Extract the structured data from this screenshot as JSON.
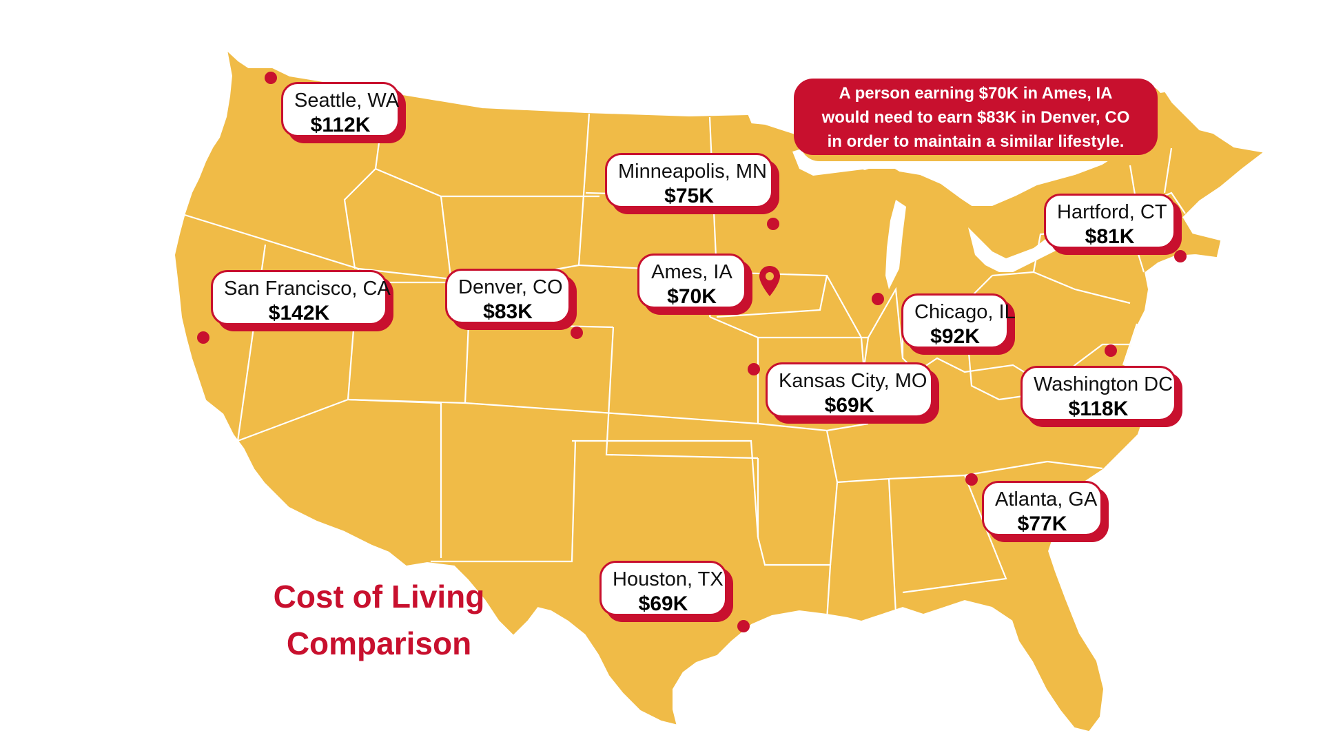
{
  "title": {
    "line1": "Cost of Living",
    "line2": "Comparison"
  },
  "note": {
    "line1": "A person earning $70K in Ames, IA",
    "line2": "would need to earn $83K in Denver, CO",
    "line3": "in order to maintain a similar lifestyle."
  },
  "home_city": "Ames, IA",
  "cities": [
    {
      "name": "Seattle, WA",
      "cost": "$112K"
    },
    {
      "name": "Minneapolis, MN",
      "cost": "$75K"
    },
    {
      "name": "Hartford, CT",
      "cost": "$81K"
    },
    {
      "name": "San Francisco, CA",
      "cost": "$142K"
    },
    {
      "name": "Denver, CO",
      "cost": "$83K"
    },
    {
      "name": "Ames, IA",
      "cost": "$70K"
    },
    {
      "name": "Chicago, IL",
      "cost": "$92K"
    },
    {
      "name": "Kansas City, MO",
      "cost": "$69K"
    },
    {
      "name": "Washington DC",
      "cost": "$118K"
    },
    {
      "name": "Atlanta, GA",
      "cost": "$77K"
    },
    {
      "name": "Houston, TX",
      "cost": "$69K"
    }
  ],
  "colors": {
    "map_fill": "#f0bb47",
    "state_borders": "#ffffff",
    "accent": "#c8102e"
  },
  "icons": {
    "home_marker": "location-pin-icon",
    "city_marker": "dot-icon"
  }
}
